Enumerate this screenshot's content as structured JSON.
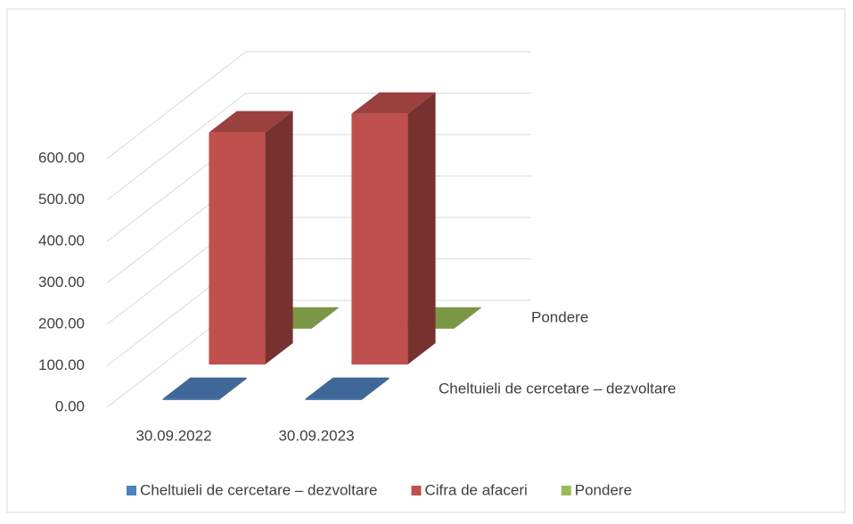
{
  "chart_data": {
    "type": "bar3d",
    "categories": [
      "30.09.2022",
      "30.09.2023"
    ],
    "series": [
      {
        "name": "Cheltuieli de cercetare – dezvoltare",
        "color": "#4f81bd",
        "values": [
          3,
          3
        ]
      },
      {
        "name": "Cifra de afaceri",
        "color": "#c0504d",
        "values": [
          560,
          605
        ]
      },
      {
        "name": "Pondere",
        "color": "#9bbb59",
        "values": [
          0.5,
          0.5
        ]
      }
    ],
    "depth_labels": [
      0,
      2
    ],
    "ylim": [
      0,
      600
    ],
    "yticks": [
      {
        "value": 0,
        "label": "0.00"
      },
      {
        "value": 100,
        "label": "100.00"
      },
      {
        "value": 200,
        "label": "200.00"
      },
      {
        "value": 300,
        "label": "300.00"
      },
      {
        "value": 400,
        "label": "400.00"
      },
      {
        "value": 500,
        "label": "500.00"
      },
      {
        "value": 600,
        "label": "600.00"
      }
    ],
    "grid": true,
    "legend": "bottom"
  }
}
